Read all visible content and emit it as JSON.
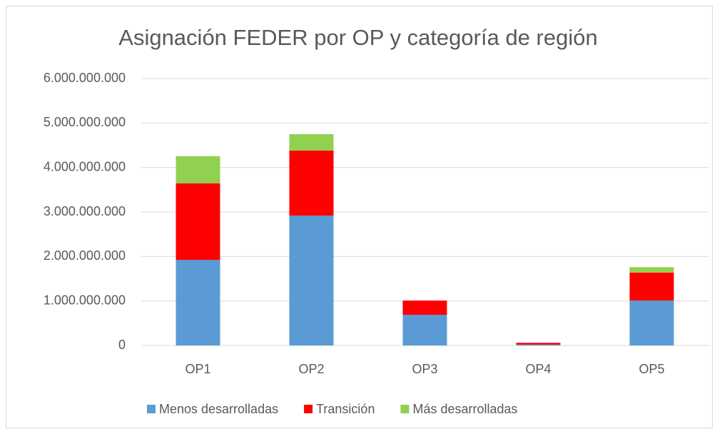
{
  "chart_data": {
    "type": "stacked-bar",
    "title": "Asignación FEDER por OP y categoría de región",
    "categories": [
      "OP1",
      "OP2",
      "OP3",
      "OP4",
      "OP5"
    ],
    "series": [
      {
        "name": "Menos desarrolladas",
        "color": "#5b9bd5",
        "values": [
          1925000000,
          2920000000,
          690000000,
          20000000,
          1010000000
        ]
      },
      {
        "name": "Transición",
        "color": "#ff0000",
        "values": [
          1720000000,
          1460000000,
          320000000,
          40000000,
          630000000
        ]
      },
      {
        "name": "Más desarrolladas",
        "color": "#92d050",
        "values": [
          610000000,
          370000000,
          0,
          0,
          120000000
        ]
      }
    ],
    "ylim": [
      0,
      6000000000
    ],
    "yticks": [
      0,
      {
        "value": 1000000000,
        "label": "1.000.000.000"
      },
      {
        "value": 2000000000,
        "label": "2.000.000.000"
      },
      {
        "value": 3000000000,
        "label": "3.000.000.000"
      },
      {
        "value": 4000000000,
        "label": "4.000.000.000"
      },
      {
        "value": 5000000000,
        "label": "5.000.000.000"
      },
      {
        "value": 6000000000,
        "label": "6.000.000.000"
      }
    ],
    "grid": true,
    "legend": "bottom"
  }
}
